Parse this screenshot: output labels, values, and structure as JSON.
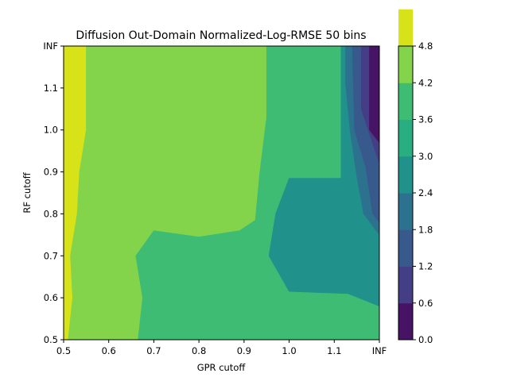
{
  "chart_data": {
    "type": "contourf",
    "title": "Diffusion Out-Domain Normalized-Log-RMSE 50 bins",
    "xlabel": "GPR cutoff",
    "ylabel": "RF cutoff",
    "x_ticks": [
      "0.5",
      "0.6",
      "0.7",
      "0.8",
      "0.9",
      "1.0",
      "1.1",
      "INF"
    ],
    "y_ticks": [
      "0.5",
      "0.6",
      "0.7",
      "0.8",
      "0.9",
      "1.0",
      "1.1",
      "INF"
    ],
    "xlim": [
      0.5,
      1.2
    ],
    "ylim": [
      0.5,
      1.2
    ],
    "colorbar": {
      "levels": [
        0.0,
        0.6,
        1.2,
        1.8,
        2.4,
        3.0,
        3.6,
        4.2,
        4.8
      ],
      "tick_labels": [
        "0.0",
        "0.6",
        "1.2",
        "1.8",
        "2.4",
        "3.0",
        "3.6",
        "4.2",
        "4.8"
      ],
      "colors": [
        "#471365",
        "#433e85",
        "#38598c",
        "#2c728e",
        "#21918c",
        "#28ae80",
        "#3fbc73",
        "#84d44b",
        "#d8e219"
      ]
    },
    "regions": [
      {
        "band": "4.2-4.8",
        "color": "#d8e219",
        "polygons": [
          [
            [
              0.5,
              1.2
            ],
            [
              0.55,
              1.2
            ],
            [
              0.55,
              1.0
            ],
            [
              0.535,
              0.9
            ],
            [
              0.53,
              0.8
            ],
            [
              0.515,
              0.7
            ],
            [
              0.52,
              0.6
            ],
            [
              0.51,
              0.5
            ],
            [
              0.5,
              0.5
            ]
          ]
        ]
      },
      {
        "band": "3.6-4.2",
        "color": "#84d44b",
        "polygons": [
          [
            [
              0.55,
              1.2
            ],
            [
              0.95,
              1.2
            ],
            [
              0.95,
              1.03
            ],
            [
              0.935,
              0.9
            ],
            [
              0.925,
              0.785
            ],
            [
              0.89,
              0.76
            ],
            [
              0.8,
              0.745
            ],
            [
              0.7,
              0.76
            ],
            [
              0.68,
              0.73
            ],
            [
              0.66,
              0.7
            ],
            [
              0.675,
              0.6
            ],
            [
              0.665,
              0.5
            ],
            [
              0.51,
              0.5
            ],
            [
              0.52,
              0.6
            ],
            [
              0.515,
              0.7
            ],
            [
              0.53,
              0.8
            ],
            [
              0.535,
              0.9
            ],
            [
              0.55,
              1.0
            ]
          ]
        ]
      },
      {
        "band": "3.0-3.6",
        "color": "#3fbc73",
        "polygons": [
          [
            [
              0.95,
              1.2
            ],
            [
              1.125,
              1.2
            ],
            [
              1.125,
              1.11
            ],
            [
              1.13,
              0.9
            ],
            [
              1.115,
              0.885
            ],
            [
              1.0,
              0.885
            ],
            [
              0.97,
              0.8
            ],
            [
              0.955,
              0.7
            ],
            [
              1.0,
              0.615
            ],
            [
              1.13,
              0.61
            ],
            [
              1.2,
              0.58
            ],
            [
              1.2,
              0.5
            ],
            [
              0.665,
              0.5
            ],
            [
              0.675,
              0.6
            ],
            [
              0.66,
              0.7
            ],
            [
              0.7,
              0.76
            ],
            [
              0.8,
              0.745
            ],
            [
              0.89,
              0.76
            ],
            [
              0.925,
              0.785
            ],
            [
              0.935,
              0.9
            ],
            [
              0.95,
              1.03
            ]
          ]
        ]
      },
      {
        "band": "2.4-3.0",
        "color": "#21918c",
        "polygons": [
          [
            [
              1.0,
              0.885
            ],
            [
              1.115,
              0.885
            ],
            [
              1.115,
              0.9
            ],
            [
              1.115,
              1.2
            ],
            [
              1.125,
              1.2
            ],
            [
              1.125,
              1.11
            ],
            [
              1.135,
              1.0
            ],
            [
              1.15,
              0.89
            ],
            [
              1.165,
              0.8
            ],
            [
              1.2,
              0.75
            ],
            [
              1.2,
              0.58
            ],
            [
              1.13,
              0.61
            ],
            [
              1.0,
              0.615
            ],
            [
              0.955,
              0.7
            ],
            [
              0.97,
              0.8
            ]
          ]
        ]
      },
      {
        "band": "1.8-2.4",
        "color": "#2c728e",
        "polygons": [
          [
            [
              1.125,
              1.2
            ],
            [
              1.14,
              1.2
            ],
            [
              1.145,
              1.0
            ],
            [
              1.17,
              0.91
            ],
            [
              1.185,
              0.8
            ],
            [
              1.2,
              0.78
            ],
            [
              1.2,
              0.75
            ],
            [
              1.165,
              0.8
            ],
            [
              1.15,
              0.89
            ],
            [
              1.135,
              1.0
            ],
            [
              1.125,
              1.11
            ]
          ]
        ]
      },
      {
        "band": "1.2-1.8",
        "color": "#38598c",
        "polygons": [
          [
            [
              1.14,
              1.2
            ],
            [
              1.16,
              1.2
            ],
            [
              1.16,
              1.05
            ],
            [
              1.2,
              0.92
            ],
            [
              1.2,
              0.78
            ],
            [
              1.185,
              0.8
            ],
            [
              1.17,
              0.91
            ],
            [
              1.145,
              1.0
            ]
          ]
        ]
      },
      {
        "band": "0.6-1.2",
        "color": "#433e85",
        "polygons": [
          [
            [
              1.16,
              1.2
            ],
            [
              1.178,
              1.2
            ],
            [
              1.178,
              1.0
            ],
            [
              1.2,
              0.97
            ],
            [
              1.2,
              0.92
            ],
            [
              1.16,
              1.05
            ]
          ]
        ]
      },
      {
        "band": "0.0-0.6",
        "color": "#471365",
        "polygons": [
          [
            [
              1.178,
              1.2
            ],
            [
              1.2,
              1.2
            ],
            [
              1.2,
              0.97
            ],
            [
              1.178,
              1.0
            ]
          ]
        ]
      }
    ]
  }
}
